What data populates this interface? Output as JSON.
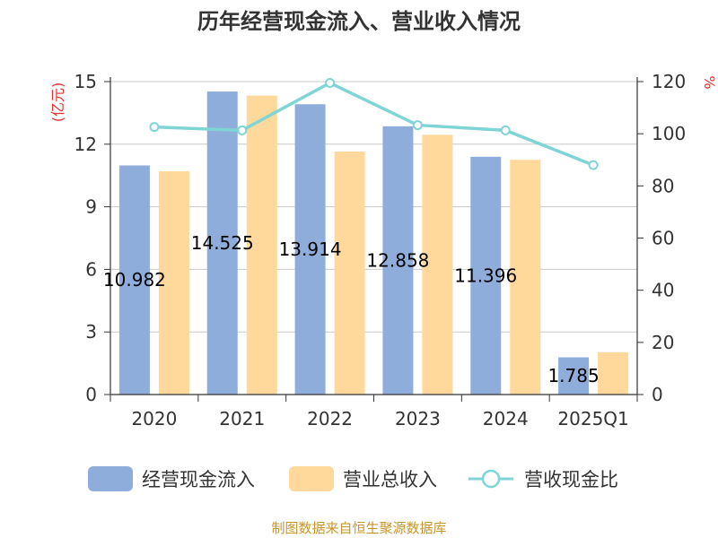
{
  "chart_data": {
    "type": "bar",
    "title": "历年经营现金流入、营业收入情况",
    "categories": [
      "2020",
      "2021",
      "2022",
      "2023",
      "2024",
      "2025Q1"
    ],
    "series": [
      {
        "name": "经营现金流入",
        "type": "bar",
        "axis": "left",
        "color": "#8eadda",
        "values": [
          10.982,
          14.525,
          13.914,
          12.858,
          11.396,
          1.785
        ]
      },
      {
        "name": "营业总收入",
        "type": "bar",
        "axis": "left",
        "color": "#fed99b",
        "values": [
          10.7,
          14.33,
          11.65,
          12.45,
          11.25,
          2.03
        ]
      },
      {
        "name": "营收现金比",
        "type": "line",
        "axis": "right",
        "color": "#7fd4d6",
        "values": [
          102.6,
          101.3,
          119.5,
          103.3,
          101.3,
          88.0
        ]
      }
    ],
    "data_labels": [
      "10.982",
      "14.525",
      "13.914",
      "12.858",
      "11.396",
      "1.785"
    ],
    "left_axis": {
      "label": "(亿元)",
      "min": 0,
      "max": 15,
      "ticks": [
        "0",
        "3",
        "6",
        "9",
        "12",
        "15"
      ]
    },
    "right_axis": {
      "label": "%",
      "min": 0,
      "max": 120,
      "ticks": [
        "0",
        "20",
        "40",
        "60",
        "80",
        "100",
        "120"
      ]
    },
    "grid": true,
    "legend_position": "bottom"
  },
  "source_text": "制图数据来自恒生聚源数据库"
}
